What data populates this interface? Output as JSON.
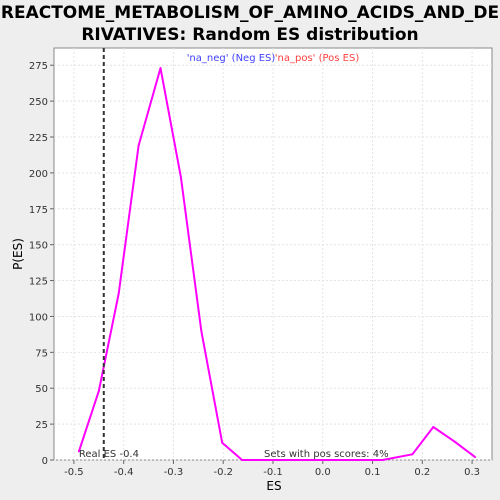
{
  "chart_data": {
    "type": "line",
    "title_lines": [
      "REACTOME_METABOLISM_OF_AMINO_ACIDS_AND_DE",
      "RIVATIVES: Random ES distribution"
    ],
    "xlabel": "ES",
    "ylabel": "P(ES)",
    "xlim": [
      -0.54,
      0.34
    ],
    "ylim": [
      0,
      287
    ],
    "x_ticks": [
      -0.5,
      -0.4,
      -0.3,
      -0.2,
      -0.1,
      0.0,
      0.1,
      0.2,
      0.3
    ],
    "x_tick_labels": [
      "-0.5",
      "-0.4",
      "-0.3",
      "-0.2",
      "-0.1",
      "0.0",
      "0.1",
      "0.2",
      "0.3"
    ],
    "y_ticks": [
      0,
      25,
      50,
      75,
      100,
      125,
      150,
      175,
      200,
      225,
      250,
      275
    ],
    "y_tick_labels": [
      "0",
      "25",
      "50",
      "75",
      "100",
      "125",
      "150",
      "175",
      "200",
      "225",
      "250",
      "275"
    ],
    "grid": true,
    "legend": [
      {
        "label": "'na_neg' (Neg ES)",
        "color": "#4040ff"
      },
      {
        "label": "'na_pos' (Pos ES)",
        "color": "#ff4040"
      }
    ],
    "legend_placement": "top-center",
    "series": [
      {
        "color": "#ff00ff",
        "x": [
          -0.49,
          -0.45,
          -0.41,
          -0.37,
          -0.326,
          -0.285,
          -0.244,
          -0.202,
          -0.162,
          -0.12,
          -0.08,
          -0.04,
          0.0,
          0.04,
          0.082,
          0.12,
          0.18,
          0.222,
          0.264,
          0.306
        ],
        "y": [
          6,
          48,
          116,
          219,
          273,
          197,
          90,
          12,
          0,
          0,
          0,
          0,
          0,
          0,
          0,
          0,
          4,
          23,
          13,
          2
        ]
      }
    ],
    "real_es": {
      "x": -0.44,
      "label": "Real ES -0.4",
      "line_style": "dashed",
      "color": "#333333"
    },
    "annotation": "Sets with pos scores: 4%"
  }
}
